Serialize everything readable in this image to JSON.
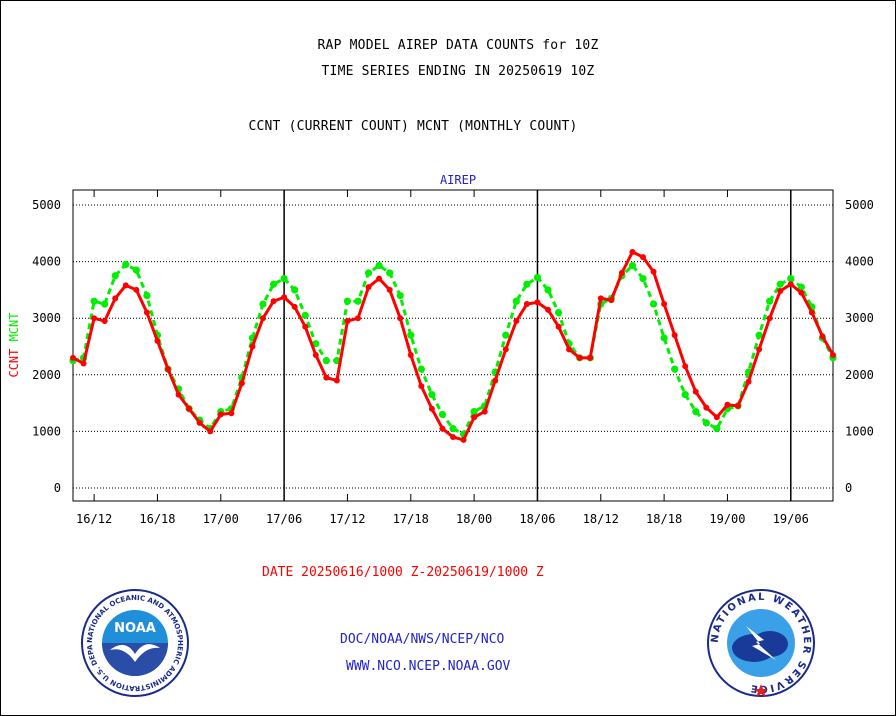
{
  "header": {
    "title1": "RAP MODEL AIREP DATA COUNTS for 10Z",
    "title2": "TIME SERIES ENDING IN 20250619 10Z",
    "title3": "CCNT (CURRENT COUNT) MCNT (MONTHLY COUNT)"
  },
  "footer": {
    "date_range": "DATE 20250616/1000 Z-20250619/1000 Z",
    "org": "DOC/NOAA/NWS/NCEP/NCO",
    "url": "WWW.NCO.NCEP.NOAA.GOV"
  },
  "logos": {
    "left_text": "NOAA",
    "left_ring": "NATIONAL OCEANIC AND ATMOSPHERIC ADMINISTRATION U.S. DEPARTMENT OF COMMERCE",
    "right_ring": "NATIONAL WEATHER SERVICE"
  },
  "colors": {
    "ccnt": "#ff0000",
    "mcnt": "#00ee00",
    "label_blue": "#2222cc"
  },
  "chart_data": {
    "type": "line",
    "title": "AIREP",
    "ylabel_ccnt": "CCNT",
    "ylabel_mcnt": "MCNT",
    "ylim": [
      0,
      5000
    ],
    "yticks": [
      0,
      1000,
      2000,
      3000,
      4000,
      5000
    ],
    "xlim_hours": [
      0,
      72
    ],
    "x_units": "hours after 16/10Z",
    "xticks": [
      {
        "h": 2,
        "label": "16/12"
      },
      {
        "h": 8,
        "label": "16/18"
      },
      {
        "h": 14,
        "label": "17/00"
      },
      {
        "h": 20,
        "label": "17/06"
      },
      {
        "h": 26,
        "label": "17/12"
      },
      {
        "h": 32,
        "label": "17/18"
      },
      {
        "h": 38,
        "label": "18/00"
      },
      {
        "h": 44,
        "label": "18/06"
      },
      {
        "h": 50,
        "label": "18/12"
      },
      {
        "h": 56,
        "label": "18/18"
      },
      {
        "h": 62,
        "label": "19/00"
      },
      {
        "h": 68,
        "label": "19/06"
      }
    ],
    "day_lines_hours": [
      20,
      44,
      68
    ],
    "grid": true,
    "series": [
      {
        "name": "CCNT",
        "color": "#ff0000",
        "values": [
          [
            0,
            2300
          ],
          [
            1,
            2200
          ],
          [
            2,
            3000
          ],
          [
            3,
            2950
          ],
          [
            4,
            3350
          ],
          [
            5,
            3580
          ],
          [
            6,
            3500
          ],
          [
            7,
            3100
          ],
          [
            8,
            2600
          ],
          [
            9,
            2100
          ],
          [
            10,
            1650
          ],
          [
            11,
            1400
          ],
          [
            12,
            1150
          ],
          [
            13,
            1000
          ],
          [
            14,
            1300
          ],
          [
            15,
            1320
          ],
          [
            16,
            1850
          ],
          [
            17,
            2500
          ],
          [
            18,
            3000
          ],
          [
            19,
            3300
          ],
          [
            20,
            3370
          ],
          [
            21,
            3200
          ],
          [
            22,
            2850
          ],
          [
            23,
            2350
          ],
          [
            24,
            1950
          ],
          [
            25,
            1900
          ],
          [
            26,
            2950
          ],
          [
            27,
            3000
          ],
          [
            28,
            3550
          ],
          [
            29,
            3700
          ],
          [
            30,
            3500
          ],
          [
            31,
            3000
          ],
          [
            32,
            2350
          ],
          [
            33,
            1800
          ],
          [
            34,
            1400
          ],
          [
            35,
            1050
          ],
          [
            36,
            900
          ],
          [
            37,
            850
          ],
          [
            38,
            1250
          ],
          [
            39,
            1350
          ],
          [
            40,
            1900
          ],
          [
            41,
            2450
          ],
          [
            42,
            2950
          ],
          [
            43,
            3250
          ],
          [
            44,
            3280
          ],
          [
            45,
            3150
          ],
          [
            46,
            2850
          ],
          [
            47,
            2450
          ],
          [
            48,
            2300
          ],
          [
            49,
            2300
          ],
          [
            50,
            3350
          ],
          [
            51,
            3320
          ],
          [
            52,
            3800
          ],
          [
            53,
            4170
          ],
          [
            54,
            4080
          ],
          [
            55,
            3820
          ],
          [
            56,
            3250
          ],
          [
            57,
            2700
          ],
          [
            58,
            2150
          ],
          [
            59,
            1700
          ],
          [
            60,
            1420
          ],
          [
            61,
            1250
          ],
          [
            62,
            1470
          ],
          [
            63,
            1450
          ],
          [
            64,
            1880
          ],
          [
            65,
            2450
          ],
          [
            66,
            3000
          ],
          [
            67,
            3480
          ],
          [
            68,
            3600
          ],
          [
            69,
            3450
          ],
          [
            70,
            3100
          ],
          [
            71,
            2680
          ],
          [
            72,
            2350
          ]
        ]
      },
      {
        "name": "MCNT",
        "color": "#00ee00",
        "values": [
          [
            0,
            2250
          ],
          [
            1,
            2300
          ],
          [
            2,
            3300
          ],
          [
            3,
            3250
          ],
          [
            4,
            3750
          ],
          [
            5,
            3950
          ],
          [
            6,
            3850
          ],
          [
            7,
            3400
          ],
          [
            8,
            2700
          ],
          [
            9,
            2100
          ],
          [
            10,
            1750
          ],
          [
            11,
            1400
          ],
          [
            12,
            1200
          ],
          [
            13,
            1050
          ],
          [
            14,
            1350
          ],
          [
            15,
            1400
          ],
          [
            16,
            1950
          ],
          [
            17,
            2650
          ],
          [
            18,
            3250
          ],
          [
            19,
            3600
          ],
          [
            20,
            3700
          ],
          [
            21,
            3500
          ],
          [
            22,
            3050
          ],
          [
            23,
            2550
          ],
          [
            24,
            2250
          ],
          [
            25,
            2250
          ],
          [
            26,
            3300
          ],
          [
            27,
            3300
          ],
          [
            28,
            3800
          ],
          [
            29,
            3930
          ],
          [
            30,
            3800
          ],
          [
            31,
            3400
          ],
          [
            32,
            2700
          ],
          [
            33,
            2100
          ],
          [
            34,
            1650
          ],
          [
            35,
            1300
          ],
          [
            36,
            1050
          ],
          [
            37,
            950
          ],
          [
            38,
            1350
          ],
          [
            39,
            1450
          ],
          [
            40,
            2050
          ],
          [
            41,
            2700
          ],
          [
            42,
            3300
          ],
          [
            43,
            3600
          ],
          [
            44,
            3720
          ],
          [
            45,
            3500
          ],
          [
            46,
            3100
          ],
          [
            47,
            2550
          ],
          [
            48,
            2300
          ],
          [
            49,
            2300
          ],
          [
            50,
            3250
          ],
          [
            51,
            3350
          ],
          [
            52,
            3750
          ],
          [
            53,
            3930
          ],
          [
            54,
            3700
          ],
          [
            55,
            3250
          ],
          [
            56,
            2650
          ],
          [
            57,
            2100
          ],
          [
            58,
            1650
          ],
          [
            59,
            1350
          ],
          [
            60,
            1150
          ],
          [
            61,
            1050
          ],
          [
            62,
            1400
          ],
          [
            63,
            1450
          ],
          [
            64,
            2050
          ],
          [
            65,
            2700
          ],
          [
            66,
            3300
          ],
          [
            67,
            3600
          ],
          [
            68,
            3700
          ],
          [
            69,
            3550
          ],
          [
            70,
            3200
          ],
          [
            71,
            2650
          ],
          [
            72,
            2300
          ]
        ]
      }
    ]
  }
}
